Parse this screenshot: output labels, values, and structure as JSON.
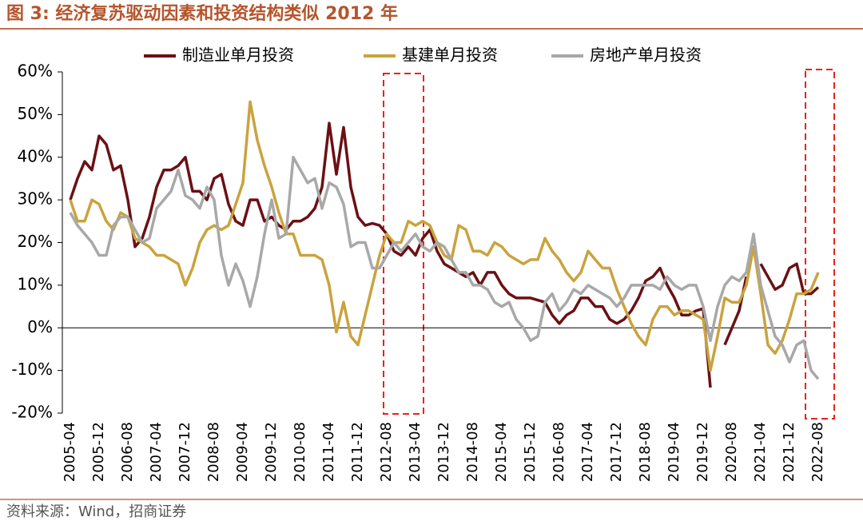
{
  "chart_data": {
    "type": "line",
    "title": "图 3:  经济复苏驱动因素和投资结构类似 2012 年",
    "source": "资料来源：Wind，招商证券",
    "categories": [
      "2005-04",
      null,
      null,
      null,
      "2005-12",
      null,
      null,
      null,
      "2006-08",
      null,
      null,
      null,
      "2007-04",
      null,
      null,
      null,
      "2007-12",
      null,
      null,
      null,
      "2008-08",
      null,
      null,
      null,
      "2009-04",
      null,
      null,
      null,
      "2009-12",
      null,
      null,
      null,
      "2010-08",
      null,
      null,
      null,
      "2011-04",
      null,
      null,
      null,
      "2011-12",
      null,
      null,
      null,
      "2012-08",
      null,
      null,
      null,
      "2013-04",
      null,
      null,
      null,
      "2013-12",
      null,
      null,
      null,
      "2014-08",
      null,
      null,
      null,
      "2015-04",
      null,
      null,
      null,
      "2015-12",
      null,
      null,
      null,
      "2016-08",
      null,
      null,
      null,
      "2017-04",
      null,
      null,
      null,
      "2017-12",
      null,
      null,
      null,
      "2018-08",
      null,
      null,
      null,
      "2019-04",
      null,
      null,
      null,
      "2019-12",
      null,
      null,
      null,
      "2020-08",
      null,
      null,
      null,
      "2021-04",
      null,
      null,
      null,
      "2021-12",
      null,
      null,
      null,
      "2022-08"
    ],
    "series": [
      {
        "name": "制造业单月投资",
        "color": "#6b1014",
        "values": [
          30,
          35,
          39,
          37,
          45,
          43,
          37,
          38,
          30,
          19,
          21,
          26,
          33,
          37,
          37,
          38,
          40,
          32,
          32,
          30,
          35,
          36,
          29,
          25,
          24,
          30,
          30,
          25,
          26,
          24,
          23,
          25,
          25,
          26,
          28,
          33,
          48,
          36,
          47,
          33,
          26,
          24,
          24.5,
          24,
          22,
          18,
          17,
          19,
          17,
          21,
          23,
          18,
          15,
          14,
          13,
          12,
          13,
          10,
          13,
          13,
          10,
          8,
          7,
          7,
          7,
          6.5,
          6,
          3,
          1,
          3,
          4,
          7,
          7,
          5,
          5,
          2,
          1,
          2,
          4,
          7,
          11,
          12,
          14,
          10,
          7,
          3,
          3,
          4,
          4.5,
          -14,
          null,
          -4,
          0,
          4,
          12,
          null,
          15,
          12,
          9,
          10,
          14,
          15,
          8,
          8,
          9.5
        ]
      },
      {
        "name": "基建单月投资",
        "color": "#c9a33e",
        "values": [
          30,
          25,
          25,
          30,
          29,
          25,
          23,
          27,
          26,
          21,
          20,
          19,
          17,
          17,
          16,
          15,
          10,
          14,
          20,
          23,
          24,
          23,
          24,
          29,
          34,
          53,
          44,
          38,
          33,
          27,
          22,
          22,
          17,
          17,
          17,
          16,
          10,
          -1,
          6,
          -2,
          -4,
          3,
          10,
          17,
          22,
          20,
          20,
          25,
          24,
          25,
          24,
          20,
          17,
          16,
          24,
          23,
          18,
          18,
          17,
          20,
          19,
          17,
          16,
          15,
          16,
          16,
          21,
          18,
          16,
          13,
          11,
          13,
          18,
          16,
          14,
          14,
          9,
          5,
          1,
          -2,
          -4,
          2,
          5,
          5,
          3,
          4,
          4,
          3,
          2,
          -10,
          -2,
          7,
          6,
          6,
          10,
          19,
          8,
          -4,
          -6,
          -3,
          2,
          8,
          8,
          9,
          13
        ]
      },
      {
        "name": "房地产单月投资",
        "color": "#a8a8a8",
        "values": [
          27,
          24,
          22,
          20,
          17,
          17,
          24,
          26,
          26,
          23,
          20,
          21,
          28,
          30,
          32,
          37,
          31,
          30,
          28,
          33,
          30,
          17,
          10,
          15,
          11,
          5,
          12,
          22,
          30,
          21,
          22,
          40,
          37,
          34,
          35,
          28,
          34,
          33,
          29,
          19,
          20,
          20,
          14,
          14,
          17,
          20,
          18,
          20,
          22,
          19,
          18,
          20,
          19,
          16,
          13,
          13,
          10,
          10,
          9,
          6,
          5,
          6,
          2,
          0,
          -3,
          -2,
          6,
          8,
          4,
          6,
          9,
          8,
          10,
          9,
          8,
          7,
          5,
          7,
          10,
          10,
          10,
          10,
          9,
          12,
          10,
          9,
          10,
          10,
          5,
          -3,
          5,
          10,
          12,
          11,
          13,
          22,
          10,
          4,
          -2,
          -4,
          -8,
          -4,
          -3,
          -10,
          -12
        ]
      }
    ],
    "ylim": [
      -20,
      60
    ],
    "yticks": [
      {
        "value": -20,
        "label": "-20%"
      },
      {
        "value": -10,
        "label": "-10%"
      },
      {
        "value": 0,
        "label": "0%"
      },
      {
        "value": 10,
        "label": "10%"
      },
      {
        "value": 20,
        "label": "20%"
      },
      {
        "value": 30,
        "label": "30%"
      },
      {
        "value": 40,
        "label": "40%"
      },
      {
        "value": 50,
        "label": "50%"
      },
      {
        "value": 60,
        "label": "60%"
      }
    ],
    "legend": "top"
  }
}
